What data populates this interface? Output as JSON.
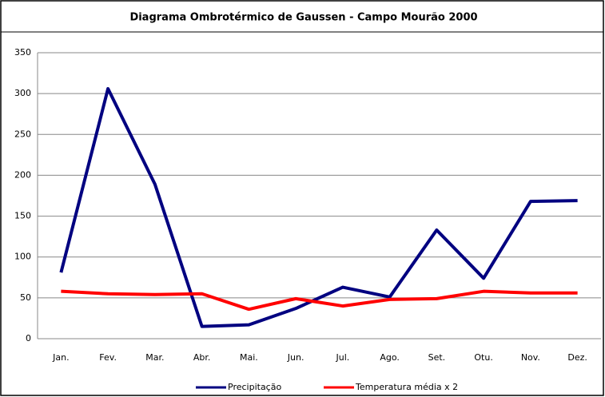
{
  "chart_data": {
    "type": "line",
    "title": "Diagrama Ombrotérmico de Gaussen - Campo Mourão 2000",
    "categories": [
      "Jan.",
      "Fev.",
      "Mar.",
      "Abr.",
      "Mai.",
      "Jun.",
      "Jul.",
      "Ago.",
      "Set.",
      "Otu.",
      "Nov.",
      "Dez."
    ],
    "series": [
      {
        "name": "Precipitação",
        "color": "#000080",
        "values": [
          81,
          306,
          189,
          15,
          17,
          37,
          63,
          51,
          133,
          74,
          168,
          169
        ]
      },
      {
        "name": "Temperatura média x 2",
        "color": "#ff0000",
        "values": [
          58,
          55,
          54,
          55,
          36,
          49,
          40,
          48,
          49,
          58,
          56,
          56
        ]
      }
    ],
    "ylim": [
      0,
      350
    ],
    "yticks": [
      0,
      50,
      100,
      150,
      200,
      250,
      300,
      350
    ],
    "grid": true,
    "legend": "bottom"
  }
}
